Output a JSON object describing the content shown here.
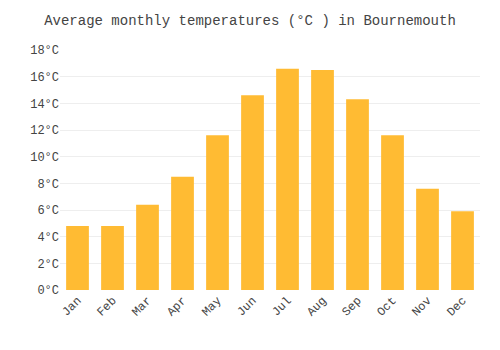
{
  "chart_data": {
    "type": "bar",
    "title": "Average monthly temperatures (°C ) in Bournemouth",
    "categories": [
      "Jan",
      "Feb",
      "Mar",
      "Apr",
      "May",
      "Jun",
      "Jul",
      "Aug",
      "Sep",
      "Oct",
      "Nov",
      "Dec"
    ],
    "values": [
      4.8,
      4.8,
      6.4,
      8.5,
      11.6,
      14.6,
      16.6,
      16.5,
      14.3,
      11.6,
      7.6,
      5.9
    ],
    "color": "#FFBB33",
    "ylim": [
      0,
      18
    ],
    "yticks": [
      {
        "value": 0,
        "label": "0°C"
      },
      {
        "value": 2,
        "label": "2°C"
      },
      {
        "value": 4,
        "label": "4°C"
      },
      {
        "value": 6,
        "label": "6°C"
      },
      {
        "value": 8,
        "label": "8°C"
      },
      {
        "value": 10,
        "label": "10°C"
      },
      {
        "value": 12,
        "label": "12°C"
      },
      {
        "value": 14,
        "label": "14°C"
      },
      {
        "value": 16,
        "label": "16°C"
      },
      {
        "value": 18,
        "label": "18°C"
      }
    ],
    "grid": true
  }
}
